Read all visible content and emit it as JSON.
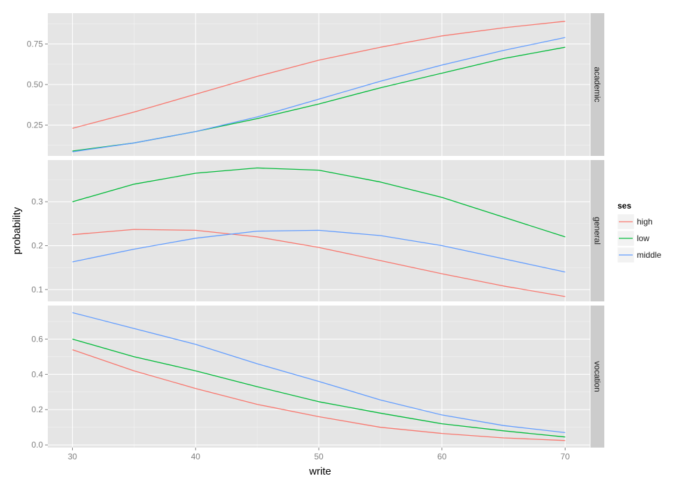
{
  "chart_data": {
    "type": "line",
    "xlabel": "write",
    "ylabel": "probability",
    "x_ticks": [
      30,
      40,
      50,
      60,
      70
    ],
    "xlim": [
      28,
      72
    ],
    "legend": {
      "title": "ses",
      "position": "right",
      "entries": [
        {
          "name": "high",
          "color": "#F8766D"
        },
        {
          "name": "low",
          "color": "#00BA38"
        },
        {
          "name": "middle",
          "color": "#619CFF"
        }
      ]
    },
    "panels": [
      {
        "strip": "academic",
        "ylim": [
          0.06,
          0.94
        ],
        "y_ticks": [
          0.25,
          0.5,
          0.75
        ],
        "y_tick_labels": [
          "0.25",
          "0.50",
          "0.75"
        ],
        "x": [
          30,
          35,
          40,
          45,
          50,
          55,
          60,
          65,
          70
        ],
        "series": [
          {
            "name": "high",
            "color": "#F8766D",
            "values": [
              0.23,
              0.33,
              0.44,
              0.55,
              0.65,
              0.73,
              0.8,
              0.85,
              0.89
            ]
          },
          {
            "name": "low",
            "color": "#00BA38",
            "values": [
              0.09,
              0.14,
              0.21,
              0.29,
              0.38,
              0.48,
              0.57,
              0.66,
              0.73
            ]
          },
          {
            "name": "middle",
            "color": "#619CFF",
            "values": [
              0.085,
              0.14,
              0.21,
              0.3,
              0.41,
              0.52,
              0.62,
              0.71,
              0.79
            ]
          }
        ]
      },
      {
        "strip": "general",
        "ylim": [
          0.073,
          0.395
        ],
        "y_ticks": [
          0.1,
          0.2,
          0.3
        ],
        "y_tick_labels": [
          "0.1",
          "0.2",
          "0.3"
        ],
        "x": [
          30,
          35,
          40,
          45,
          50,
          55,
          60,
          65,
          70
        ],
        "series": [
          {
            "name": "high",
            "color": "#F8766D",
            "values": [
              0.225,
              0.237,
              0.235,
              0.22,
              0.196,
              0.166,
              0.136,
              0.108,
              0.084
            ]
          },
          {
            "name": "low",
            "color": "#00BA38",
            "values": [
              0.3,
              0.34,
              0.365,
              0.377,
              0.372,
              0.345,
              0.31,
              0.265,
              0.22
            ]
          },
          {
            "name": "middle",
            "color": "#619CFF",
            "values": [
              0.163,
              0.192,
              0.217,
              0.233,
              0.235,
              0.223,
              0.2,
              0.17,
              0.14
            ]
          }
        ]
      },
      {
        "strip": "vocation",
        "ylim": [
          -0.015,
          0.79
        ],
        "y_ticks": [
          0.0,
          0.2,
          0.4,
          0.6
        ],
        "y_tick_labels": [
          "0.0",
          "0.2",
          "0.4",
          "0.6"
        ],
        "x": [
          30,
          35,
          40,
          45,
          50,
          55,
          60,
          65,
          70
        ],
        "series": [
          {
            "name": "high",
            "color": "#F8766D",
            "values": [
              0.54,
              0.42,
              0.32,
              0.23,
              0.16,
              0.1,
              0.065,
              0.04,
              0.025
            ]
          },
          {
            "name": "low",
            "color": "#00BA38",
            "values": [
              0.6,
              0.5,
              0.42,
              0.33,
              0.245,
              0.18,
              0.12,
              0.08,
              0.045
            ]
          },
          {
            "name": "middle",
            "color": "#619CFF",
            "values": [
              0.75,
              0.66,
              0.57,
              0.46,
              0.36,
              0.255,
              0.17,
              0.11,
              0.07
            ]
          }
        ]
      }
    ]
  }
}
